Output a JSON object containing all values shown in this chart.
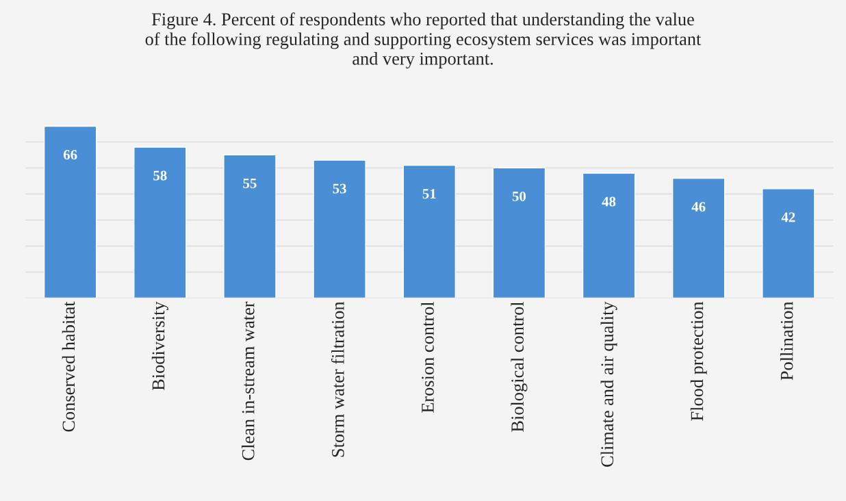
{
  "chart_data": {
    "type": "bar",
    "title": "Figure 4. Percent of respondents who reported that understanding the value\nof the following regulating and supporting ecosystem services was important\nand very important.",
    "categories": [
      "Conserved habitat",
      "Biodiversity",
      "Clean in-stream water",
      "Storm water filtration",
      "Erosion control",
      "Biological control",
      "Climate and air quality",
      "Flood protection",
      "Pollination"
    ],
    "values": [
      66,
      58,
      55,
      53,
      51,
      50,
      48,
      46,
      42
    ],
    "color": "#4a8fd6",
    "yticks": [
      {
        "value": 0,
        "label": null
      },
      {
        "value": 10,
        "label": null
      },
      {
        "value": 20,
        "label": null
      },
      {
        "value": 30,
        "label": null
      },
      {
        "value": 40,
        "label": null
      },
      {
        "value": 50,
        "label": null
      },
      {
        "value": 60,
        "label": null
      }
    ],
    "grid": "y",
    "tick_labels": "x",
    "data_labels": true
  }
}
